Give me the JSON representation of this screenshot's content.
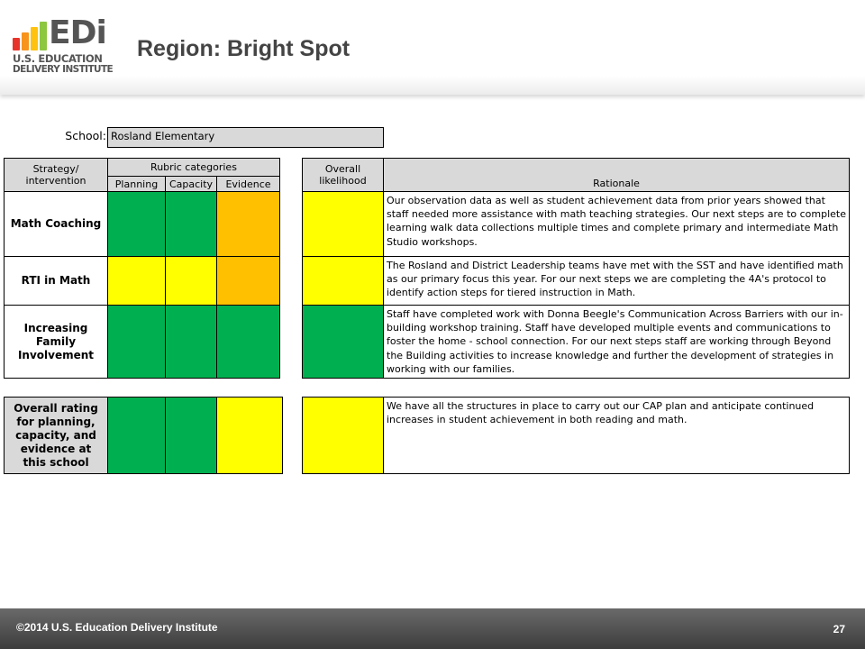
{
  "logo": {
    "letters": "EDi",
    "line1": "U.S. EDUCATION",
    "line2": "DELIVERY INSTITUTE",
    "bar_colors": [
      "#e8332a",
      "#f7941d",
      "#ffc20e",
      "#8dc63f"
    ]
  },
  "page_title": "Region: Bright Spot",
  "school": {
    "label": "School:",
    "value": "Rosland Elementary"
  },
  "headers": {
    "strategy": "Strategy/ intervention",
    "rubric_categories": "Rubric categories",
    "planning": "Planning",
    "capacity": "Capacity",
    "evidence": "Evidence",
    "overall_likelihood": "Overall likelihood",
    "rationale": "Rationale"
  },
  "rows": [
    {
      "strategy": "Math Coaching",
      "planning": "green",
      "capacity": "green",
      "evidence": "orange",
      "likelihood": "yellow",
      "rationale": "Our observation data as well as student achievement data from prior years showed that staff needed more assistance with math teaching strategies.  Our next steps are to complete learning walk data collections multiple times and complete primary and intermediate Math Studio workshops."
    },
    {
      "strategy": "RTI in Math",
      "planning": "yellow",
      "capacity": "yellow",
      "evidence": "orange",
      "likelihood": "yellow",
      "rationale": "The Rosland and District Leadership teams have met with the SST and have identified math as our primary focus this year.  For our next steps we are completing the 4A's protocol to identify action steps for tiered instruction in Math."
    },
    {
      "strategy": "Increasing Family Involvement",
      "planning": "green",
      "capacity": "green",
      "evidence": "green",
      "likelihood": "green",
      "rationale": "Staff have completed work with Donna Beegle's Communication Across Barriers with our in-building workshop training.  Staff have developed multiple events and communications to foster the home - school connection. For our next steps staff are working through Beyond the Building activities to increase knowledge and further the development of strategies in working with our families."
    }
  ],
  "overall": {
    "label": "Overall rating for planning, capacity, and evidence at this school",
    "planning": "green",
    "capacity": "green",
    "evidence": "yellow",
    "likelihood": "yellow",
    "rationale": "We have all the structures in place to carry out our CAP plan and anticipate continued increases in student achievement in both reading and math."
  },
  "rating_colors": {
    "green": "#00b050",
    "yellow": "#ffff00",
    "orange": "#ffc000"
  },
  "footer": {
    "copyright": "©2014 U.S. Education Delivery Institute",
    "page_number": "27"
  }
}
